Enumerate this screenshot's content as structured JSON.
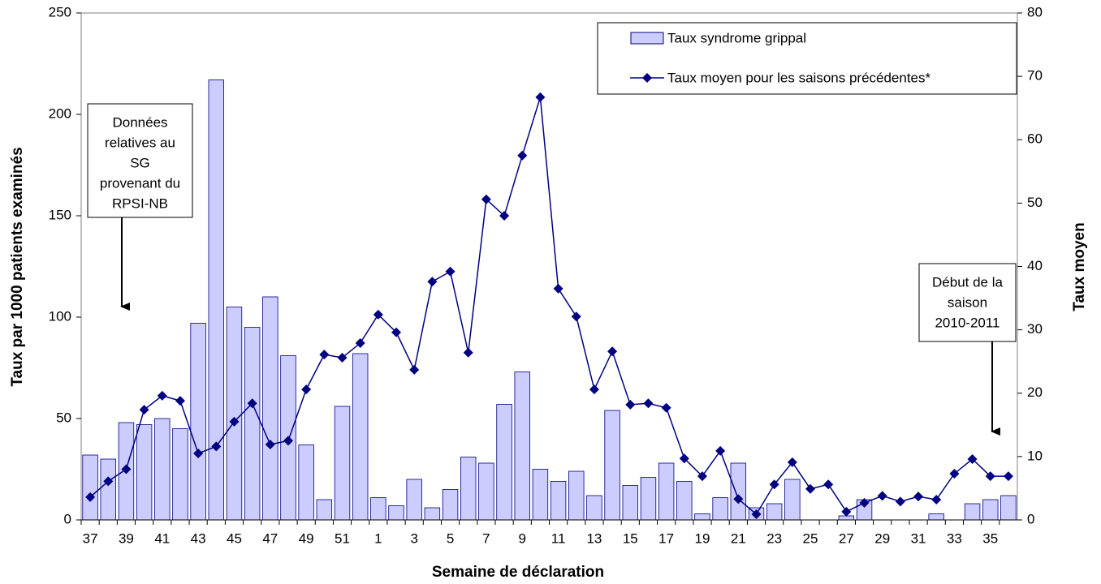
{
  "chart_data": {
    "type": "bar-line",
    "x_label": "Semaine de déclaration",
    "y_label": "Taux par 1000 patients examinés",
    "y2_label": "Taux moyen",
    "categories": [
      "37",
      null,
      "39",
      null,
      "41",
      null,
      "43",
      null,
      "45",
      null,
      "47",
      null,
      "49",
      null,
      "51",
      null,
      "1",
      null,
      "3",
      null,
      "5",
      null,
      "7",
      null,
      "9",
      null,
      "11",
      null,
      "13",
      null,
      "15",
      null,
      "17",
      null,
      "19",
      null,
      "21",
      null,
      "23",
      null,
      "25",
      null,
      "27",
      null,
      "29",
      null,
      "31",
      null,
      "33",
      null,
      "35",
      null
    ],
    "series": [
      {
        "name": "Taux syndrome grippal",
        "color": "#ccccff",
        "values": [
          32,
          30,
          48,
          47,
          50,
          45,
          97,
          217,
          105,
          95,
          110,
          81,
          37,
          10,
          56,
          82,
          11,
          7,
          20,
          6,
          15,
          31,
          28,
          57,
          73,
          25,
          19,
          24,
          12,
          54,
          17,
          21,
          28,
          19,
          3,
          11,
          28,
          6,
          8,
          20,
          0,
          0,
          2,
          10,
          0,
          0,
          0,
          3,
          0,
          8,
          10,
          12
        ]
      },
      {
        "name": "Taux moyen pour les saisons précédentes*",
        "color": "#000080",
        "axis": "y2",
        "values": [
          3.6,
          6.1,
          8,
          17.4,
          19.6,
          18.8,
          10.5,
          11.6,
          15.5,
          18.4,
          11.9,
          12.5,
          20.6,
          26.1,
          25.6,
          27.9,
          32.4,
          29.6,
          23.7,
          37.6,
          39.2,
          26.4,
          50.6,
          48,
          57.5,
          66.7,
          36.5,
          32.1,
          20.6,
          26.6,
          18.2,
          18.4,
          17.7,
          9.7,
          6.9,
          10.9,
          3.3,
          0.9,
          5.6,
          9.1,
          4.9,
          5.6,
          1.3,
          2.7,
          3.8,
          2.9,
          3.7,
          3.2,
          7.3,
          9.6,
          6.9,
          6.9
        ]
      }
    ],
    "ylim": [
      0,
      250
    ],
    "yticks": [
      0,
      50,
      100,
      150,
      200,
      250
    ],
    "y2lim": [
      0,
      80
    ],
    "y2ticks": [
      0,
      10,
      20,
      30,
      40,
      50,
      60,
      70,
      80
    ],
    "annotations": [
      {
        "lines": [
          "Données",
          "relatives au",
          "SG",
          "provenant du",
          "RPSI-NB"
        ]
      },
      {
        "lines": [
          "Début de la",
          "saison",
          "2010-2011"
        ]
      }
    ]
  }
}
